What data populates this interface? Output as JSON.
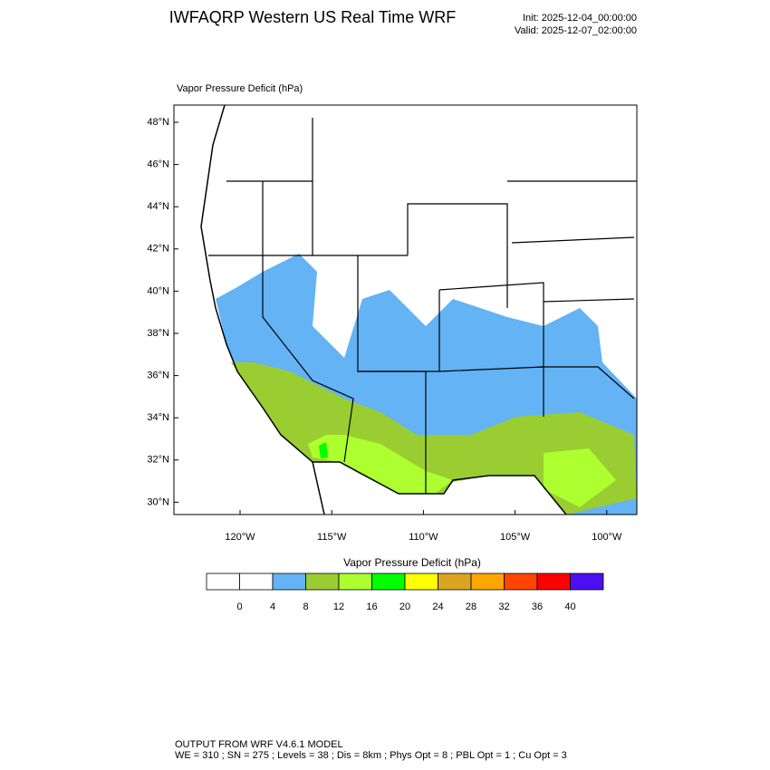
{
  "header": {
    "title": "IWFAQRP Western US Real Time WRF",
    "init": "Init: 2025-12-04_00:00:00",
    "valid": "Valid: 2025-12-07_02:00:00"
  },
  "map": {
    "label": "Vapor Pressure Deficit   (hPa)",
    "lat_labels": [
      "48°N",
      "46°N",
      "44°N",
      "42°N",
      "40°N",
      "38°N",
      "36°N",
      "34°N",
      "32°N",
      "30°N"
    ],
    "lon_labels": [
      "120°W",
      "115°W",
      "110°W",
      "105°W",
      "100°W"
    ]
  },
  "colorbar": {
    "title": "Vapor Pressure Deficit  (hPa)",
    "labels": [
      "0",
      "4",
      "8",
      "12",
      "16",
      "20",
      "24",
      "28",
      "32",
      "36",
      "40"
    ],
    "colors": [
      "#ffffff",
      "#ffffff",
      "#63b3f5",
      "#9acd32",
      "#adff2f",
      "#00ff00",
      "#ffff00",
      "#daa520",
      "#ffa500",
      "#ff4500",
      "#ff0000",
      "#4b0ff0"
    ]
  },
  "footer": {
    "line1": "OUTPUT FROM WRF V4.6.1 MODEL",
    "line2": "WE = 310 ; SN = 275 ; Levels = 38 ; Dis = 8km ; Phys Opt = 8 ; PBL Opt = 1 ; Cu Opt = 3"
  }
}
